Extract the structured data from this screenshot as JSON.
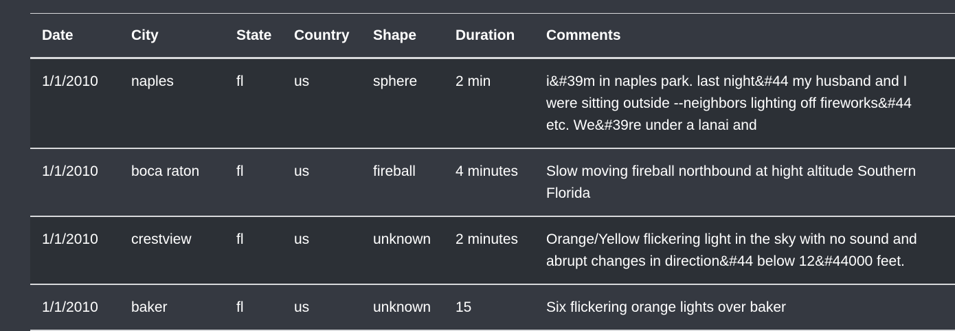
{
  "table": {
    "headers": [
      "Date",
      "City",
      "State",
      "Country",
      "Shape",
      "Duration",
      "Comments"
    ],
    "rows": [
      [
        "1/1/2010",
        "naples",
        "fl",
        "us",
        "sphere",
        "2 min",
        "i&#39m in naples park. last night&#44 my husband and I were sitting outside --neighbors lighting off fireworks&#44 etc. We&#39re under a lanai and"
      ],
      [
        "1/1/2010",
        "boca raton",
        "fl",
        "us",
        "fireball",
        "4 minutes",
        "Slow moving fireball northbound at hight altitude Southern Florida"
      ],
      [
        "1/1/2010",
        "crestview",
        "fl",
        "us",
        "unknown",
        "2 minutes",
        "Orange/Yellow flickering light in the sky with no sound and abrupt changes in direction&#44 below 12&#44000 feet."
      ],
      [
        "1/1/2010",
        "baker",
        "fl",
        "us",
        "unknown",
        "15",
        "Six flickering orange lights over baker"
      ]
    ]
  }
}
